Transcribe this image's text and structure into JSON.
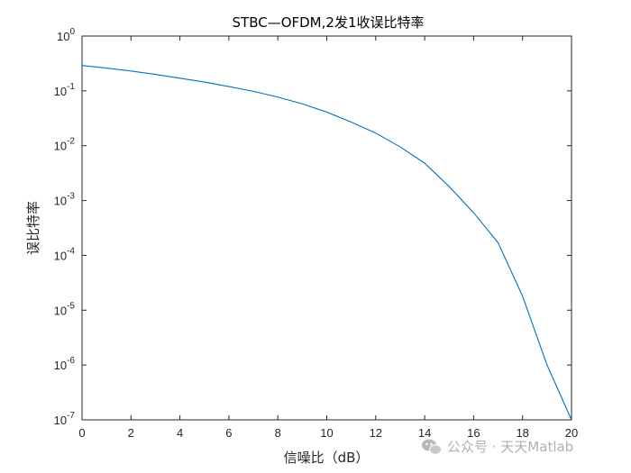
{
  "chart_data": {
    "type": "line",
    "title": "STBC—OFDM,2发1收误比特率",
    "xlabel": "信噪比（dB）",
    "ylabel": "误比特率",
    "xlim": [
      0,
      20
    ],
    "ylim": [
      1e-07,
      1
    ],
    "yscale": "log",
    "grid": false,
    "x_ticks": [
      0,
      2,
      4,
      6,
      8,
      10,
      12,
      14,
      16,
      18,
      20
    ],
    "y_ticks": [
      {
        "base": "10",
        "exp": "0",
        "value": 1
      },
      {
        "base": "10",
        "exp": "-1",
        "value": 0.1
      },
      {
        "base": "10",
        "exp": "-2",
        "value": 0.01
      },
      {
        "base": "10",
        "exp": "-3",
        "value": 0.001
      },
      {
        "base": "10",
        "exp": "-4",
        "value": 0.0001
      },
      {
        "base": "10",
        "exp": "-5",
        "value": 1e-05
      },
      {
        "base": "10",
        "exp": "-6",
        "value": 1e-06
      },
      {
        "base": "10",
        "exp": "-7",
        "value": 1e-07
      }
    ],
    "series": [
      {
        "color": "#0072BD",
        "x": [
          0,
          1,
          2,
          3,
          4,
          5,
          6,
          7,
          8,
          9,
          10,
          11,
          12,
          13,
          14,
          15,
          16,
          17,
          18,
          19,
          20
        ],
        "y": [
          0.29,
          0.26,
          0.23,
          0.2,
          0.17,
          0.145,
          0.12,
          0.098,
          0.077,
          0.058,
          0.041,
          0.027,
          0.017,
          0.0095,
          0.0048,
          0.0018,
          0.0006,
          0.00017,
          1.8e-05,
          1e-06,
          1e-07
        ]
      }
    ]
  },
  "watermark": {
    "icon": "wechat-icon",
    "text": "公众号 · 天天Matlab",
    "color": "#b0b0b0"
  }
}
